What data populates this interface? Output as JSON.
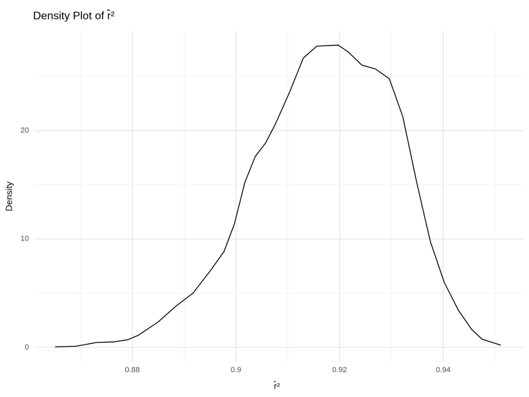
{
  "chart_data": {
    "type": "line",
    "title": "Density Plot of r̂²",
    "x_label": "r̂²",
    "y_label": "Density",
    "x": [
      0.8651,
      0.8691,
      0.8731,
      0.8764,
      0.8791,
      0.8811,
      0.885,
      0.8884,
      0.8917,
      0.8951,
      0.8977,
      0.8997,
      0.9017,
      0.9037,
      0.9057,
      0.9076,
      0.9103,
      0.913,
      0.9156,
      0.9197,
      0.9216,
      0.9243,
      0.9269,
      0.9296,
      0.9322,
      0.9349,
      0.9375,
      0.9402,
      0.9429,
      0.9455,
      0.9475,
      0.9511
    ],
    "series": [
      {
        "color": "#000000",
        "values": [
          0.05,
          0.1,
          0.45,
          0.5,
          0.7,
          1.1,
          2.35,
          3.8,
          5.0,
          7.1,
          8.85,
          11.4,
          15.2,
          17.6,
          18.85,
          20.6,
          23.5,
          26.7,
          27.8,
          27.9,
          27.3,
          26.05,
          25.7,
          24.8,
          21.3,
          15.2,
          9.8,
          6.0,
          3.45,
          1.65,
          0.75,
          0.2
        ]
      }
    ],
    "xlim": [
      0.8611,
      0.9555
    ],
    "ylim": [
      -1.34,
      29.2
    ],
    "xticks": [
      0.88,
      0.9,
      0.92,
      0.94
    ],
    "yticks": [
      0,
      10,
      20
    ],
    "x_minor_ticks": [
      0.87,
      0.89,
      0.91,
      0.93,
      0.95
    ],
    "y_minor_ticks": [
      5,
      15,
      25
    ],
    "grid": true
  }
}
